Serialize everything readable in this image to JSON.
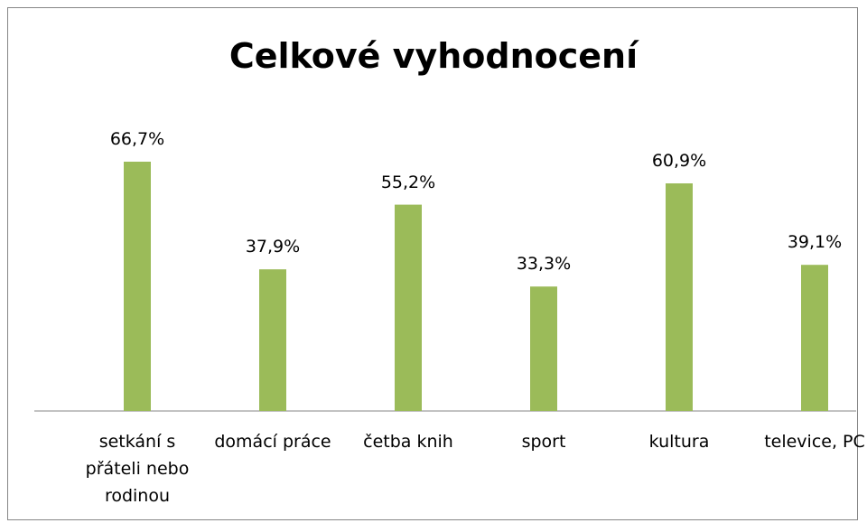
{
  "chart_data": {
    "type": "bar",
    "title": "Celkové vyhodnocení",
    "categories": [
      "setkání s přáteli nebo rodinou",
      "domácí práce",
      "četba knih",
      "sport",
      "kultura",
      "televice, PC"
    ],
    "values": [
      66.7,
      37.9,
      55.2,
      33.3,
      60.9,
      39.1
    ],
    "value_labels": [
      "66,7%",
      "37,9%",
      "55,2%",
      "33,3%",
      "60,9%",
      "39,1%"
    ],
    "color": "#9bbb59"
  }
}
